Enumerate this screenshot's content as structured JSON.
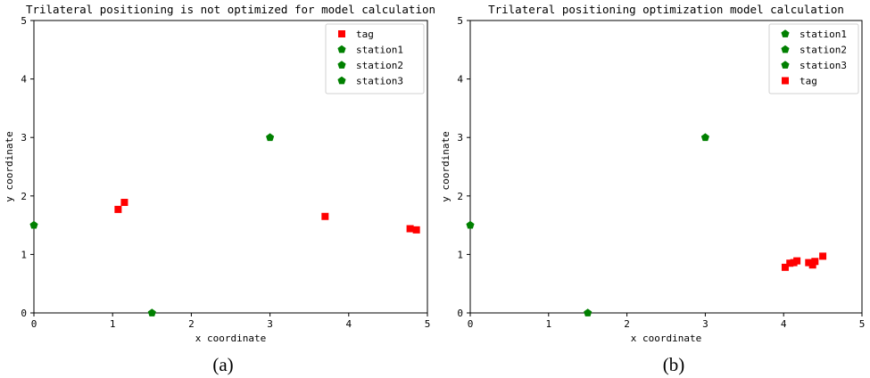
{
  "chart_data": [
    {
      "type": "scatter",
      "title": "Trilateral positioning is not optimized for model calculation",
      "xlabel": "x coordinate",
      "ylabel": "y coordinate",
      "xlim": [
        0,
        5
      ],
      "ylim": [
        0,
        5
      ],
      "xticks": [
        "0",
        "1",
        "2",
        "3",
        "4",
        "5"
      ],
      "yticks": [
        "0",
        "1",
        "2",
        "3",
        "4",
        "5"
      ],
      "grid": false,
      "legend_position": "top-right",
      "caption": "(a)",
      "series": [
        {
          "name": "tag",
          "marker": "square",
          "color": "#ff0000",
          "points": [
            [
              1.07,
              1.77
            ],
            [
              1.15,
              1.89
            ],
            [
              3.7,
              1.65
            ],
            [
              4.78,
              1.44
            ],
            [
              4.86,
              1.42
            ]
          ]
        },
        {
          "name": "station1",
          "marker": "pentagon",
          "color": "#008000",
          "points": [
            [
              0,
              1.5
            ]
          ]
        },
        {
          "name": "station2",
          "marker": "pentagon",
          "color": "#008000",
          "points": [
            [
              1.5,
              0
            ]
          ]
        },
        {
          "name": "station3",
          "marker": "pentagon",
          "color": "#008000",
          "points": [
            [
              3,
              3
            ]
          ]
        }
      ]
    },
    {
      "type": "scatter",
      "title": "Trilateral positioning optimization model calculation",
      "xlabel": "x coordinate",
      "ylabel": "y coordinate",
      "xlim": [
        0,
        5
      ],
      "ylim": [
        0,
        5
      ],
      "xticks": [
        "0",
        "1",
        "2",
        "3",
        "4",
        "5"
      ],
      "yticks": [
        "0",
        "1",
        "2",
        "3",
        "4",
        "5"
      ],
      "grid": false,
      "legend_position": "top-right",
      "caption": "(b)",
      "series": [
        {
          "name": "station1",
          "marker": "pentagon",
          "color": "#008000",
          "points": [
            [
              0,
              1.5
            ]
          ]
        },
        {
          "name": "station2",
          "marker": "pentagon",
          "color": "#008000",
          "points": [
            [
              1.5,
              0
            ]
          ]
        },
        {
          "name": "station3",
          "marker": "pentagon",
          "color": "#008000",
          "points": [
            [
              3,
              3
            ]
          ]
        },
        {
          "name": "tag",
          "marker": "square",
          "color": "#ff0000",
          "points": [
            [
              4.02,
              0.78
            ],
            [
              4.08,
              0.85
            ],
            [
              4.13,
              0.86
            ],
            [
              4.17,
              0.89
            ],
            [
              4.32,
              0.86
            ],
            [
              4.37,
              0.82
            ],
            [
              4.4,
              0.88
            ],
            [
              4.5,
              0.97
            ]
          ]
        }
      ]
    }
  ]
}
